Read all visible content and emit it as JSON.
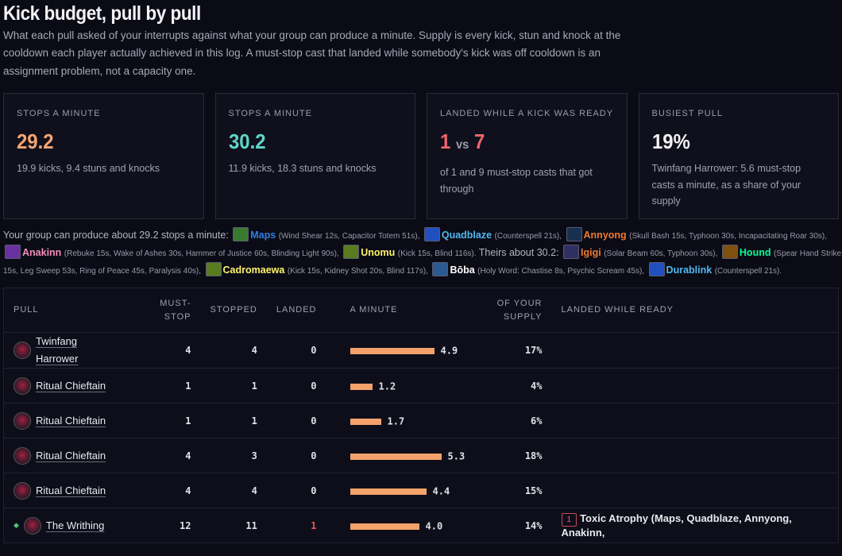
{
  "header": {
    "title": "Kick budget, pull by pull",
    "intro": "What each pull asked of your interrupts against what your group can produce a minute. Supply is every kick, stun and knock at the cooldown each player actually achieved in this log. A must-stop cast that landed while somebody's kick was off cooldown is an assignment problem, not a capacity one."
  },
  "cards": [
    {
      "label": "Stops a minute",
      "value": "29.2",
      "sub": "19.9 kicks, 9.4 stuns and knocks",
      "color": "#f6a572"
    },
    {
      "label": "Stops a minute",
      "value": "30.2",
      "sub": "11.9 kicks, 18.3 stuns and knocks",
      "color": "#5fd6c8"
    },
    {
      "label": "Landed while a kick was ready",
      "value_a": "1",
      "vs": "vs",
      "value_b": "7",
      "sub": "of 1 and 9 must-stop casts that got through",
      "color": "#f0646e"
    },
    {
      "label": "Busiest pull",
      "value": "19%",
      "sub": "Twinfang Harrower: 5.6 must-stop casts a minute, as a share of your supply",
      "color": "#f2f2f6"
    }
  ],
  "roster": {
    "intro_ours": "Your group can produce about 29.2 stops a minute:",
    "intro_theirs": "Theirs about 30.2:",
    "ours": [
      {
        "name": "Maps",
        "detail": "(Wind Shear 12s, Capacitor Totem 51s),",
        "color": "#2f7fe0",
        "icon": "totem-icon",
        "icon_color": "#3a7a30"
      },
      {
        "name": "Quadblaze",
        "detail": "(Counterspell 21s),",
        "color": "#4fb8f0",
        "icon": "counterspell-icon",
        "icon_color": "#2050c0"
      },
      {
        "name": "Annyong",
        "detail": "(Skull Bash 15s, Typhoon 30s, Incapacitating Roar 30s),",
        "color": "#f07a2a",
        "icon": "skull-bash-icon",
        "icon_color": "#1a3050"
      },
      {
        "name": "Anakinn",
        "detail": "(Rebuke 15s, Wake of Ashes 30s, Hammer of Justice 60s, Blinding Light 90s),",
        "color": "#f48cba",
        "icon": "rebuke-icon",
        "icon_color": "#6a30a0"
      },
      {
        "name": "Unomu",
        "detail": "(Kick 15s, Blind 116s).",
        "color": "#fff468",
        "icon": "kick-icon",
        "icon_color": "#5a7a20"
      }
    ],
    "theirs": [
      {
        "name": "Igigi",
        "detail": "(Solar Beam 60s, Typhoon 30s),",
        "color": "#f07a2a",
        "icon": "solar-beam-icon",
        "icon_color": "#303060"
      },
      {
        "name": "Hound",
        "detail": "(Spear Hand Strike 15s, Leg Sweep 53s, Ring of Peace 45s, Paralysis 40s),",
        "color": "#00ff98",
        "icon": "spear-hand-strike-icon",
        "icon_color": "#805010"
      },
      {
        "name": "Cadromaewa",
        "detail": "(Kick 15s, Kidney Shot 20s, Blind 117s),",
        "color": "#fff468",
        "icon": "kick-icon",
        "icon_color": "#5a7a20"
      },
      {
        "name": "Bōba",
        "detail": "(Holy Word: Chastise 8s, Psychic Scream 45s),",
        "color": "#ffffff",
        "icon": "chastise-icon",
        "icon_color": "#2a5a90"
      },
      {
        "name": "Durablink",
        "detail": "(Counterspell 21s).",
        "color": "#4fb8f0",
        "icon": "counterspell-icon",
        "icon_color": "#2050c0"
      }
    ]
  },
  "table": {
    "headers": {
      "pull": "Pull",
      "must_stop_1": "Must-",
      "must_stop_2": "stop",
      "stopped": "Stopped",
      "landed": "Landed",
      "a_minute": "A minute",
      "supply_1": "Of your",
      "supply_2": "supply",
      "landed_ready": "Landed while ready"
    },
    "bar_scale_max": 5.6,
    "rows": [
      {
        "boss": "Twinfang Harrower",
        "must_stop": "4",
        "stopped": "4",
        "landed": "0",
        "a_minute": 4.9,
        "a_minute_label": "4.9",
        "supply": "17%",
        "landed_ready": "",
        "tag": "",
        "marker": false
      },
      {
        "boss": "Ritual Chieftain",
        "must_stop": "1",
        "stopped": "1",
        "landed": "0",
        "a_minute": 1.2,
        "a_minute_label": "1.2",
        "supply": "4%",
        "landed_ready": "",
        "tag": "",
        "marker": false
      },
      {
        "boss": "Ritual Chieftain",
        "must_stop": "1",
        "stopped": "1",
        "landed": "0",
        "a_minute": 1.7,
        "a_minute_label": "1.7",
        "supply": "6%",
        "landed_ready": "",
        "tag": "",
        "marker": false
      },
      {
        "boss": "Ritual Chieftain",
        "must_stop": "4",
        "stopped": "3",
        "landed": "0",
        "a_minute": 5.3,
        "a_minute_label": "5.3",
        "supply": "18%",
        "landed_ready": "",
        "tag": "",
        "marker": false
      },
      {
        "boss": "Ritual Chieftain",
        "must_stop": "4",
        "stopped": "4",
        "landed": "0",
        "a_minute": 4.4,
        "a_minute_label": "4.4",
        "supply": "15%",
        "landed_ready": "",
        "tag": "",
        "marker": false
      },
      {
        "boss": "The Writhing",
        "must_stop": "12",
        "stopped": "11",
        "landed": "1",
        "a_minute": 4.0,
        "a_minute_label": "4.0",
        "supply": "14%",
        "landed_ready": "Toxic Atrophy (Maps, Quadblaze, Annyong, Anakinn,",
        "tag": "1",
        "marker": true
      }
    ]
  }
}
